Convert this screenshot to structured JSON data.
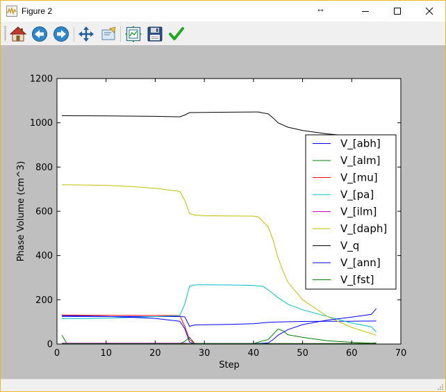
{
  "window": {
    "title": "Figure 2",
    "resize_hint": "↔",
    "controls": [
      "minimize",
      "maximize",
      "close"
    ]
  },
  "toolbar": {
    "buttons": [
      {
        "name": "home-button",
        "icon": "home-icon"
      },
      {
        "name": "back-button",
        "icon": "arrow-left-icon"
      },
      {
        "name": "forward-button",
        "icon": "arrow-right-icon"
      },
      {
        "name": "pan-button",
        "icon": "move-icon"
      },
      {
        "name": "zoom-button",
        "icon": "zoom-rect-icon"
      },
      {
        "name": "subplots-button",
        "icon": "subplots-icon"
      },
      {
        "name": "save-button",
        "icon": "floppy-icon"
      },
      {
        "name": "edit-axes-button",
        "icon": "checkmark-icon"
      }
    ]
  },
  "colors": {
    "canvas_bg": "#bfbfbf",
    "axes_bg": "#ffffff",
    "V_[abh]": "#0000ff",
    "V_[alm]": "#008000",
    "V_[mu]": "#ff0000",
    "V_[pa]": "#00bfbf",
    "V_[ilm]": "#bf00bf",
    "V_[daph]": "#bfbf00",
    "V_q": "#000000",
    "V_[ann]": "#0000ff",
    "V_[fst]": "#008000"
  },
  "chart_data": {
    "type": "line",
    "title": "",
    "xlabel": "Step",
    "ylabel": "Phase Volume (cm^3)",
    "xlim": [
      0,
      70
    ],
    "ylim": [
      0,
      1200
    ],
    "xticks": [
      0,
      10,
      20,
      30,
      40,
      50,
      60,
      70
    ],
    "yticks": [
      0,
      200,
      400,
      600,
      800,
      1000,
      1200
    ],
    "grid": false,
    "legend_position": "right",
    "series": [
      {
        "name": "V_[abh]",
        "color": "#0000ff",
        "points": [
          [
            1,
            125
          ],
          [
            10,
            124
          ],
          [
            20,
            124
          ],
          [
            25,
            124
          ],
          [
            26,
            123
          ],
          [
            27,
            80
          ],
          [
            28,
            86
          ],
          [
            30,
            87
          ],
          [
            35,
            89
          ],
          [
            40,
            92
          ],
          [
            43,
            98
          ],
          [
            45,
            100
          ],
          [
            50,
            102
          ],
          [
            55,
            103
          ],
          [
            60,
            103
          ],
          [
            65,
            104
          ]
        ]
      },
      {
        "name": "V_[alm]",
        "color": "#008000",
        "points": [
          [
            1,
            40
          ],
          [
            2,
            3
          ],
          [
            5,
            2
          ],
          [
            10,
            2
          ],
          [
            20,
            2
          ],
          [
            25,
            2
          ],
          [
            26,
            12
          ],
          [
            27,
            30
          ],
          [
            28,
            3
          ],
          [
            30,
            2
          ],
          [
            40,
            2
          ],
          [
            42,
            15
          ],
          [
            43,
            20
          ],
          [
            45,
            68
          ],
          [
            46,
            60
          ],
          [
            47,
            42
          ],
          [
            50,
            30
          ],
          [
            55,
            15
          ],
          [
            60,
            8
          ],
          [
            64,
            4
          ],
          [
            65,
            6
          ]
        ]
      },
      {
        "name": "V_[mu]",
        "color": "#ff0000",
        "points": [
          [
            1,
            131
          ],
          [
            10,
            130
          ],
          [
            20,
            129
          ],
          [
            25,
            129
          ],
          [
            26,
            80
          ],
          [
            27,
            20
          ],
          [
            28,
            3
          ],
          [
            30,
            2
          ],
          [
            40,
            2
          ],
          [
            50,
            2
          ],
          [
            60,
            2
          ],
          [
            65,
            2
          ]
        ]
      },
      {
        "name": "V_[pa]",
        "color": "#00bfbf",
        "points": [
          [
            1,
            115
          ],
          [
            5,
            115
          ],
          [
            10,
            117
          ],
          [
            15,
            120
          ],
          [
            20,
            124
          ],
          [
            25,
            128
          ],
          [
            26,
            180
          ],
          [
            27,
            262
          ],
          [
            28,
            267
          ],
          [
            29,
            268
          ],
          [
            30,
            268
          ],
          [
            35,
            267
          ],
          [
            40,
            265
          ],
          [
            42,
            260
          ],
          [
            43,
            245
          ],
          [
            45,
            210
          ],
          [
            47,
            180
          ],
          [
            50,
            155
          ],
          [
            55,
            125
          ],
          [
            60,
            95
          ],
          [
            64,
            78
          ],
          [
            65,
            55
          ]
        ]
      },
      {
        "name": "V_[ilm]",
        "color": "#bf00bf",
        "points": [
          [
            1,
            4
          ],
          [
            10,
            4
          ],
          [
            20,
            4
          ],
          [
            25,
            4
          ],
          [
            26,
            4
          ],
          [
            27,
            2
          ],
          [
            30,
            2
          ],
          [
            40,
            2
          ],
          [
            50,
            2
          ],
          [
            60,
            2
          ],
          [
            65,
            2
          ]
        ]
      },
      {
        "name": "V_[daph]",
        "color": "#bfbf00",
        "points": [
          [
            1,
            720
          ],
          [
            5,
            719
          ],
          [
            10,
            717
          ],
          [
            15,
            712
          ],
          [
            20,
            704
          ],
          [
            25,
            690
          ],
          [
            26,
            650
          ],
          [
            27,
            590
          ],
          [
            28,
            583
          ],
          [
            30,
            580
          ],
          [
            35,
            579
          ],
          [
            40,
            578
          ],
          [
            41,
            575
          ],
          [
            43,
            530
          ],
          [
            44,
            470
          ],
          [
            45,
            390
          ],
          [
            46,
            330
          ],
          [
            47,
            280
          ],
          [
            50,
            200
          ],
          [
            55,
            125
          ],
          [
            60,
            75
          ],
          [
            65,
            40
          ]
        ]
      },
      {
        "name": "V_q",
        "color": "#000000",
        "points": [
          [
            1,
            1032
          ],
          [
            10,
            1031
          ],
          [
            20,
            1029
          ],
          [
            25,
            1027
          ],
          [
            26,
            1035
          ],
          [
            27,
            1046
          ],
          [
            30,
            1047
          ],
          [
            35,
            1048
          ],
          [
            40,
            1049
          ],
          [
            41,
            1049
          ],
          [
            43,
            1040
          ],
          [
            44,
            1022
          ],
          [
            45,
            1000
          ],
          [
            47,
            980
          ],
          [
            50,
            965
          ],
          [
            55,
            950
          ],
          [
            60,
            940
          ],
          [
            65,
            935
          ]
        ]
      },
      {
        "name": "V_[ann]",
        "color": "#0000ff",
        "points": [
          [
            1,
            128
          ],
          [
            5,
            127
          ],
          [
            10,
            125
          ],
          [
            15,
            121
          ],
          [
            20,
            116
          ],
          [
            25,
            103
          ],
          [
            26,
            70
          ],
          [
            27,
            8
          ],
          [
            28,
            2
          ],
          [
            30,
            2
          ],
          [
            40,
            2
          ],
          [
            43,
            5
          ],
          [
            44,
            20
          ],
          [
            45,
            40
          ],
          [
            47,
            65
          ],
          [
            50,
            88
          ],
          [
            55,
            108
          ],
          [
            60,
            122
          ],
          [
            64,
            134
          ],
          [
            65,
            160
          ]
        ]
      },
      {
        "name": "V_[fst]",
        "color": "#008000",
        "points": [
          [
            1,
            2
          ],
          [
            10,
            2
          ],
          [
            20,
            2
          ],
          [
            30,
            2
          ],
          [
            40,
            2
          ],
          [
            50,
            2
          ],
          [
            55,
            2
          ],
          [
            60,
            2
          ],
          [
            64,
            2
          ],
          [
            65,
            2
          ]
        ]
      }
    ]
  }
}
